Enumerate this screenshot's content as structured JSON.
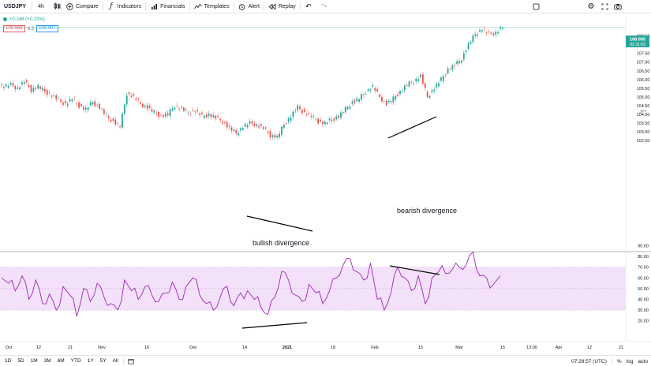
{
  "toolbar": {
    "symbol": "USDJPY",
    "interval": "4h",
    "compare": "Compare",
    "indicators": "Indicators",
    "financials": "Financials",
    "templates": "Templates",
    "alert": "Alert",
    "replay": "Replay"
  },
  "legend": {
    "change": "+0.246 (+0.23%)",
    "bid": "108.989",
    "spread": "6.3",
    "ask": "109.007"
  },
  "price_axis": {
    "ticks": [
      "109.00",
      "108.50",
      "108.00",
      "107.50",
      "107.00",
      "106.50",
      "106.00",
      "105.50",
      "105.00",
      "104.50",
      "104.00",
      "103.50",
      "103.00",
      "102.50"
    ],
    "current_price": "108.995",
    "countdown": "02:31:03",
    "currency": "JPY"
  },
  "rsi_axis": {
    "ticks": [
      "90.00",
      "80.00",
      "70.00",
      "60.00",
      "50.00",
      "40.00",
      "30.00",
      "20.00"
    ]
  },
  "time_axis": {
    "ticks": [
      "Oct",
      "12",
      "21",
      "Nov",
      "16",
      "Dec",
      "14",
      "2021",
      "18",
      "Feb",
      "15",
      "Mar",
      "15",
      "13:00",
      "Apr",
      "12",
      "21"
    ]
  },
  "annotations": {
    "bullish": "bullish divergence",
    "bearish": "bearish divergence"
  },
  "bottom_bar": {
    "timeframes": [
      "1D",
      "5D",
      "1M",
      "3M",
      "6M",
      "YTD",
      "1Y",
      "5Y",
      "All"
    ],
    "clock": "07:28:57 (UTC)",
    "percent": "%",
    "log": "log",
    "auto": "auto"
  },
  "colors": {
    "up": "#26a69a",
    "down": "#ef5350",
    "rsi_line": "#9c27b0",
    "rsi_band": "#f3e1fa",
    "annotation_line": "#000000"
  },
  "chart_data": {
    "type": "line",
    "series": [
      {
        "values": [
          105.6,
          105.7,
          105.5,
          105.9,
          105.4,
          105.6,
          105.3,
          105.1,
          104.8,
          104.6,
          104.9,
          104.5,
          104.3,
          104.7,
          104.4,
          103.9,
          103.6,
          103.3,
          105.2,
          105.0,
          104.6,
          104.4,
          104.1,
          103.9,
          104.0,
          104.5,
          104.3,
          104.1,
          104.2,
          103.9,
          104.0,
          103.8,
          103.6,
          103.2,
          102.9,
          103.3,
          103.5,
          103.4,
          103.2,
          102.8,
          102.7,
          103.4,
          103.9,
          104.4,
          104.1,
          103.9,
          103.6,
          103.5,
          103.7,
          103.9,
          104.3,
          104.7,
          104.9,
          105.3,
          105.6,
          105.0,
          104.6,
          104.9,
          105.3,
          105.7,
          105.9,
          106.2,
          105.0,
          105.5,
          106.0,
          106.6,
          106.8,
          107.2,
          108.0,
          108.6,
          108.9,
          108.6,
          108.7,
          109.0
        ]
      },
      {
        "values": [
          60,
          55,
          48,
          62,
          40,
          58,
          36,
          45,
          30,
          52,
          44,
          24,
          50,
          38,
          55,
          42,
          36,
          30,
          58,
          48,
          40,
          52,
          44,
          38,
          46,
          56,
          40,
          52,
          60,
          44,
          36,
          30,
          42,
          52,
          34,
          46,
          48,
          40,
          32,
          26,
          42,
          66,
          58,
          44,
          38,
          54,
          46,
          36,
          48,
          60,
          72,
          78,
          66,
          58,
          74,
          40,
          30,
          46,
          70,
          60,
          48,
          62,
          36,
          60,
          66,
          64,
          68,
          70,
          72,
          84,
          62,
          60,
          54,
          62
        ]
      }
    ],
    "title": "USDJPY"
  }
}
